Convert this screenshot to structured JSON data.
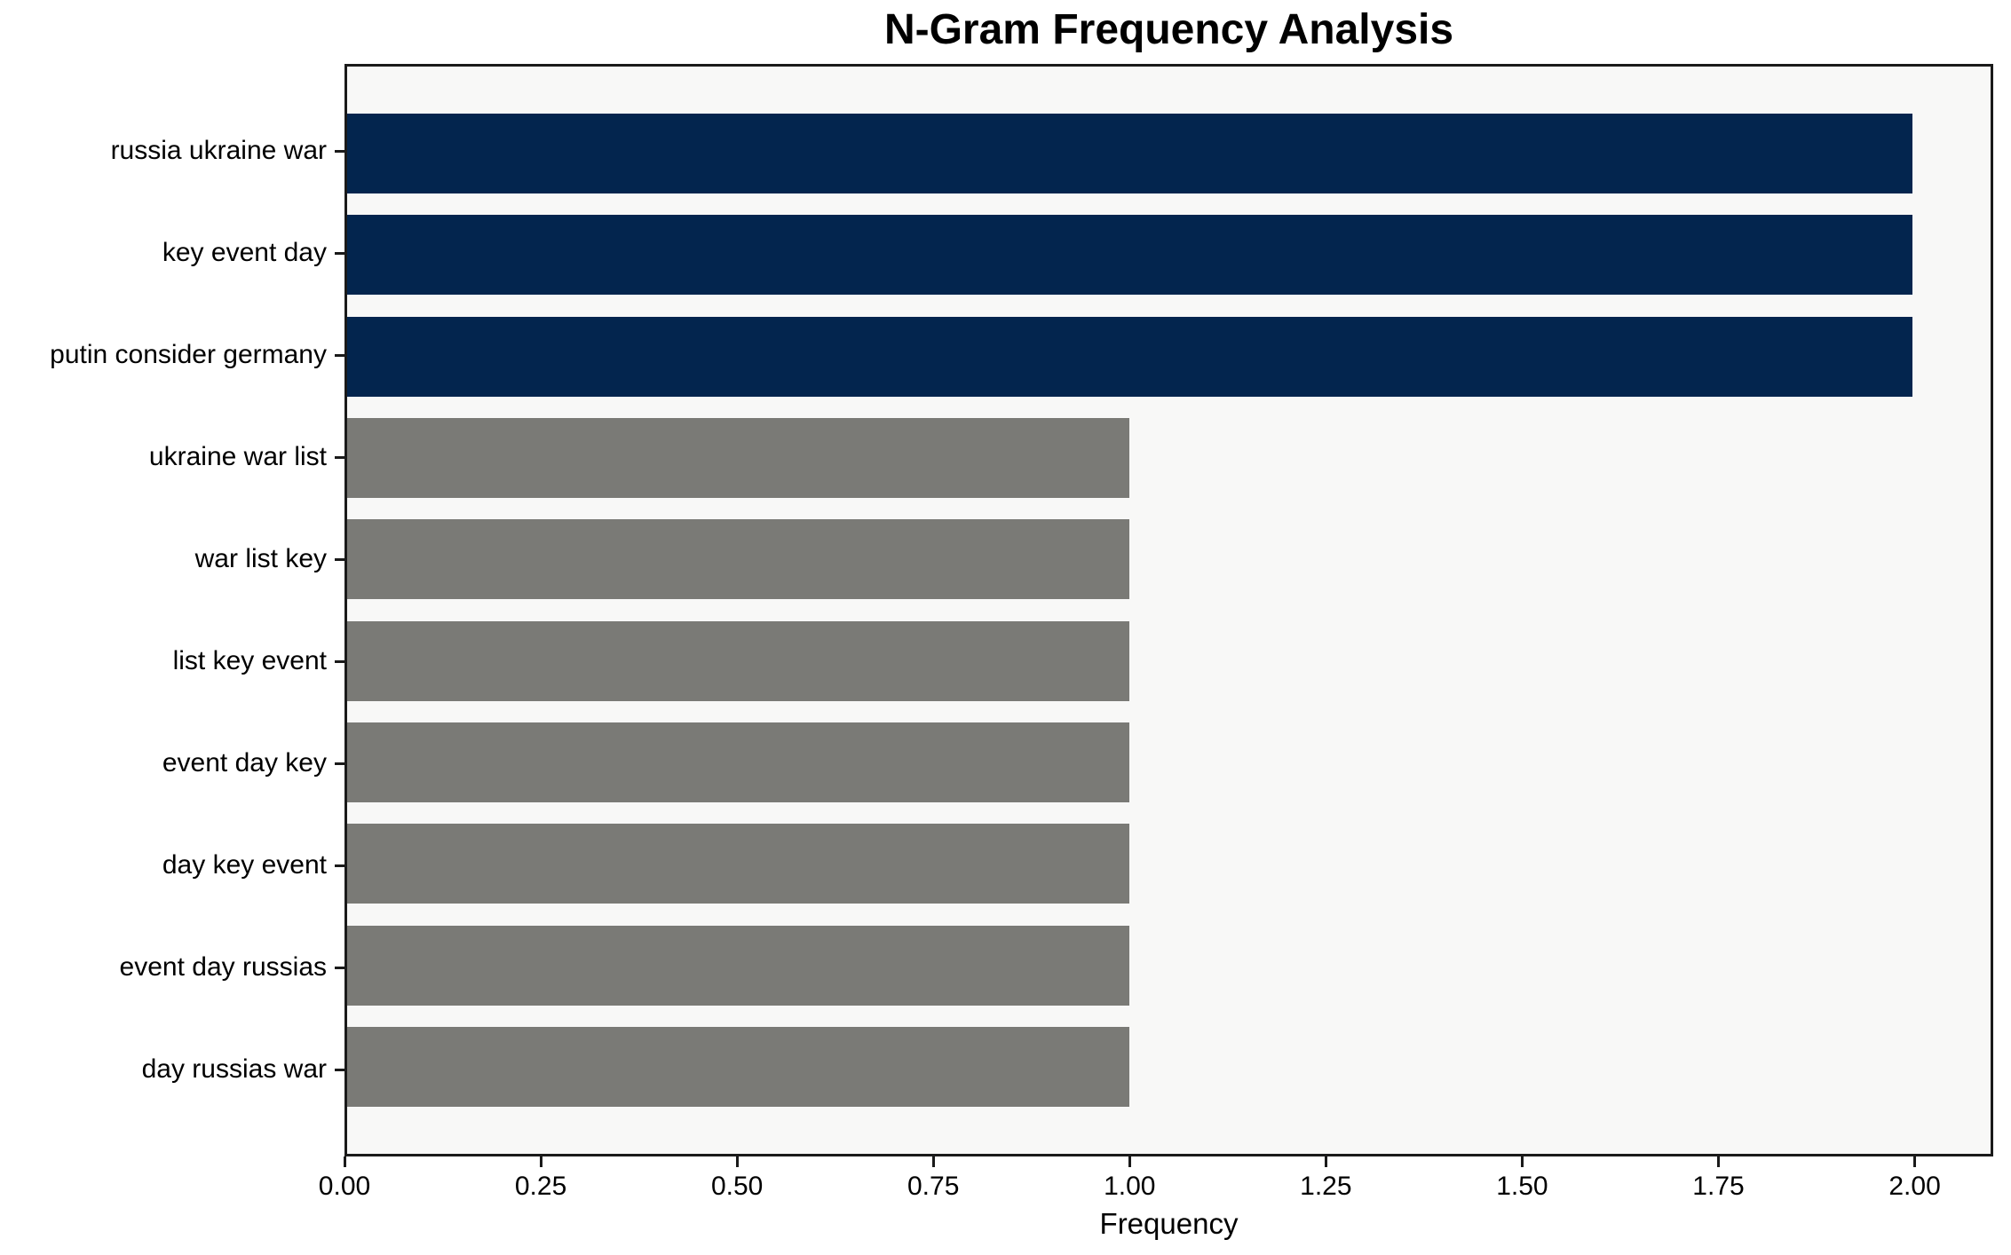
{
  "title": "N-Gram Frequency Analysis",
  "chart_data": {
    "type": "bar",
    "orientation": "horizontal",
    "title": "N-Gram Frequency Analysis",
    "xlabel": "Frequency",
    "ylabel": "",
    "categories": [
      "russia ukraine war",
      "key event day",
      "putin consider germany",
      "ukraine war list",
      "war list key",
      "list key event",
      "event day key",
      "day key event",
      "event day russias",
      "day russias war"
    ],
    "values": [
      2,
      2,
      2,
      1,
      1,
      1,
      1,
      1,
      1,
      1
    ],
    "bar_colors": [
      "#03254e",
      "#03254e",
      "#03254e",
      "#7a7a76",
      "#7a7a76",
      "#7a7a76",
      "#7a7a76",
      "#7a7a76",
      "#7a7a76",
      "#7a7a76"
    ],
    "xlim": [
      0,
      2.1
    ],
    "x_tick_values": [
      0,
      0.25,
      0.5,
      0.75,
      1.0,
      1.25,
      1.5,
      1.75,
      2.0
    ],
    "x_tick_labels": [
      "0.00",
      "0.25",
      "0.50",
      "0.75",
      "1.00",
      "1.25",
      "1.50",
      "1.75",
      "2.00"
    ],
    "grid": false,
    "legend": "none",
    "colors": {
      "highlight_bar": "#03254e",
      "normal_bar": "#7a7a76",
      "plot_background": "#f8f8f7",
      "figure_background": "#ffffff",
      "spine": "#1a1a1a",
      "text": "#000000"
    }
  }
}
